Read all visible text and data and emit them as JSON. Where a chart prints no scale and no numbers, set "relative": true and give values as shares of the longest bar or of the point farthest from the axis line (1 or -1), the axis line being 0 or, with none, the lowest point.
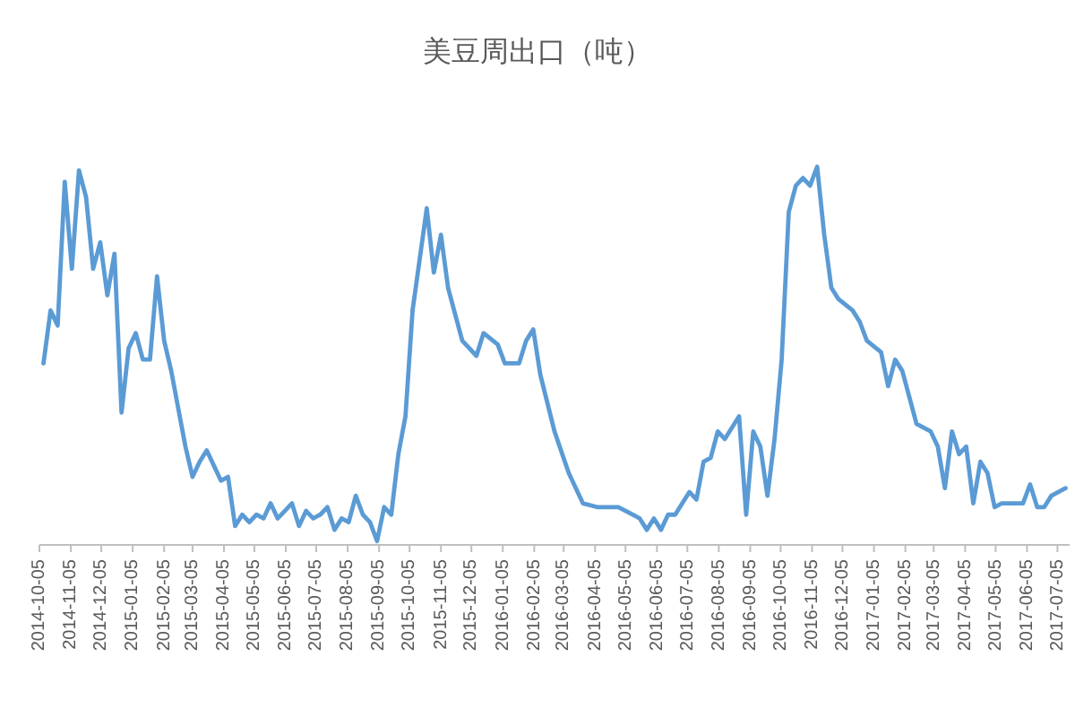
{
  "chart_data": {
    "type": "line",
    "title": "美豆周出口（吨）",
    "relative": true,
    "color": "#5b9bd5",
    "xlim": [
      "2014-10-05",
      "2017-07-17"
    ],
    "xticks": [
      "2014-10-05",
      "2014-11-05",
      "2014-12-05",
      "2015-01-05",
      "2015-02-05",
      "2015-03-05",
      "2015-04-05",
      "2015-05-05",
      "2015-06-05",
      "2015-07-05",
      "2015-08-05",
      "2015-09-05",
      "2015-10-05",
      "2015-11-05",
      "2015-12-05",
      "2016-01-05",
      "2016-02-05",
      "2016-03-05",
      "2016-04-05",
      "2016-05-05",
      "2016-06-05",
      "2016-07-05",
      "2016-08-05",
      "2016-09-05",
      "2016-10-05",
      "2016-11-05",
      "2016-12-05",
      "2017-01-05",
      "2017-02-05",
      "2017-03-05",
      "2017-04-05",
      "2017-05-05",
      "2017-06-05",
      "2017-07-05"
    ],
    "x": [
      "2014-10-09",
      "2014-10-16",
      "2014-10-23",
      "2014-10-30",
      "2014-11-06",
      "2014-11-13",
      "2014-11-20",
      "2014-11-27",
      "2014-12-04",
      "2014-12-11",
      "2014-12-18",
      "2014-12-25",
      "2015-01-01",
      "2015-01-08",
      "2015-01-15",
      "2015-01-22",
      "2015-01-29",
      "2015-02-05",
      "2015-02-12",
      "2015-02-19",
      "2015-02-26",
      "2015-03-05",
      "2015-03-12",
      "2015-03-19",
      "2015-03-26",
      "2015-04-02",
      "2015-04-09",
      "2015-04-16",
      "2015-04-23",
      "2015-04-30",
      "2015-05-07",
      "2015-05-14",
      "2015-05-21",
      "2015-05-28",
      "2015-06-04",
      "2015-06-11",
      "2015-06-18",
      "2015-06-25",
      "2015-07-02",
      "2015-07-09",
      "2015-07-16",
      "2015-07-23",
      "2015-07-30",
      "2015-08-06",
      "2015-08-13",
      "2015-08-20",
      "2015-08-27",
      "2015-09-03",
      "2015-09-10",
      "2015-09-17",
      "2015-09-24",
      "2015-10-01",
      "2015-10-08",
      "2015-10-22",
      "2015-10-29",
      "2015-11-05",
      "2015-11-12",
      "2015-11-19",
      "2015-11-26",
      "2015-12-10",
      "2015-12-17",
      "2015-12-31",
      "2016-01-07",
      "2016-01-21",
      "2016-01-28",
      "2016-02-04",
      "2016-02-11",
      "2016-02-25",
      "2016-03-10",
      "2016-03-24",
      "2016-04-07",
      "2016-04-14",
      "2016-04-28",
      "2016-05-12",
      "2016-05-19",
      "2016-05-26",
      "2016-06-02",
      "2016-06-09",
      "2016-06-16",
      "2016-06-23",
      "2016-06-30",
      "2016-07-07",
      "2016-07-14",
      "2016-07-21",
      "2016-07-28",
      "2016-08-04",
      "2016-08-11",
      "2016-08-25",
      "2016-09-01",
      "2016-09-08",
      "2016-09-15",
      "2016-09-22",
      "2016-09-29",
      "2016-10-06",
      "2016-10-13",
      "2016-10-20",
      "2016-10-27",
      "2016-11-03",
      "2016-11-10",
      "2016-11-17",
      "2016-11-24",
      "2016-12-01",
      "2016-12-15",
      "2016-12-22",
      "2016-12-29",
      "2017-01-12",
      "2017-01-19",
      "2017-01-26",
      "2017-02-02",
      "2017-02-16",
      "2017-03-02",
      "2017-03-09",
      "2017-03-16",
      "2017-03-23",
      "2017-03-30",
      "2017-04-06",
      "2017-04-13",
      "2017-04-20",
      "2017-04-27",
      "2017-05-04",
      "2017-05-11",
      "2017-05-18",
      "2017-06-01",
      "2017-06-08",
      "2017-06-15",
      "2017-06-22",
      "2017-06-29",
      "2017-07-06",
      "2017-07-13"
    ],
    "values": [
      0.48,
      0.62,
      0.58,
      0.96,
      0.73,
      0.99,
      0.92,
      0.73,
      0.8,
      0.66,
      0.77,
      0.35,
      0.52,
      0.56,
      0.49,
      0.49,
      0.71,
      0.54,
      0.46,
      0.36,
      0.26,
      0.18,
      0.22,
      0.25,
      0.21,
      0.17,
      0.18,
      0.05,
      0.08,
      0.06,
      0.08,
      0.07,
      0.11,
      0.07,
      0.09,
      0.11,
      0.05,
      0.09,
      0.07,
      0.08,
      0.1,
      0.04,
      0.07,
      0.06,
      0.13,
      0.08,
      0.06,
      0.01,
      0.1,
      0.08,
      0.24,
      0.34,
      0.62,
      0.89,
      0.72,
      0.82,
      0.68,
      0.61,
      0.54,
      0.5,
      0.56,
      0.53,
      0.48,
      0.48,
      0.54,
      0.57,
      0.45,
      0.3,
      0.19,
      0.11,
      0.1,
      0.1,
      0.1,
      0.08,
      0.07,
      0.04,
      0.07,
      0.04,
      0.08,
      0.08,
      0.11,
      0.14,
      0.12,
      0.22,
      0.23,
      0.3,
      0.28,
      0.34,
      0.08,
      0.3,
      0.26,
      0.13,
      0.28,
      0.49,
      0.88,
      0.95,
      0.97,
      0.95,
      1,
      0.82,
      0.68,
      0.65,
      0.62,
      0.59,
      0.54,
      0.51,
      0.42,
      0.49,
      0.46,
      0.32,
      0.3,
      0.26,
      0.15,
      0.3,
      0.24,
      0.26,
      0.11,
      0.22,
      0.19,
      0.1,
      0.11,
      0.11,
      0.11,
      0.16,
      0.1,
      0.1,
      0.13,
      0.14,
      0.15
    ]
  }
}
